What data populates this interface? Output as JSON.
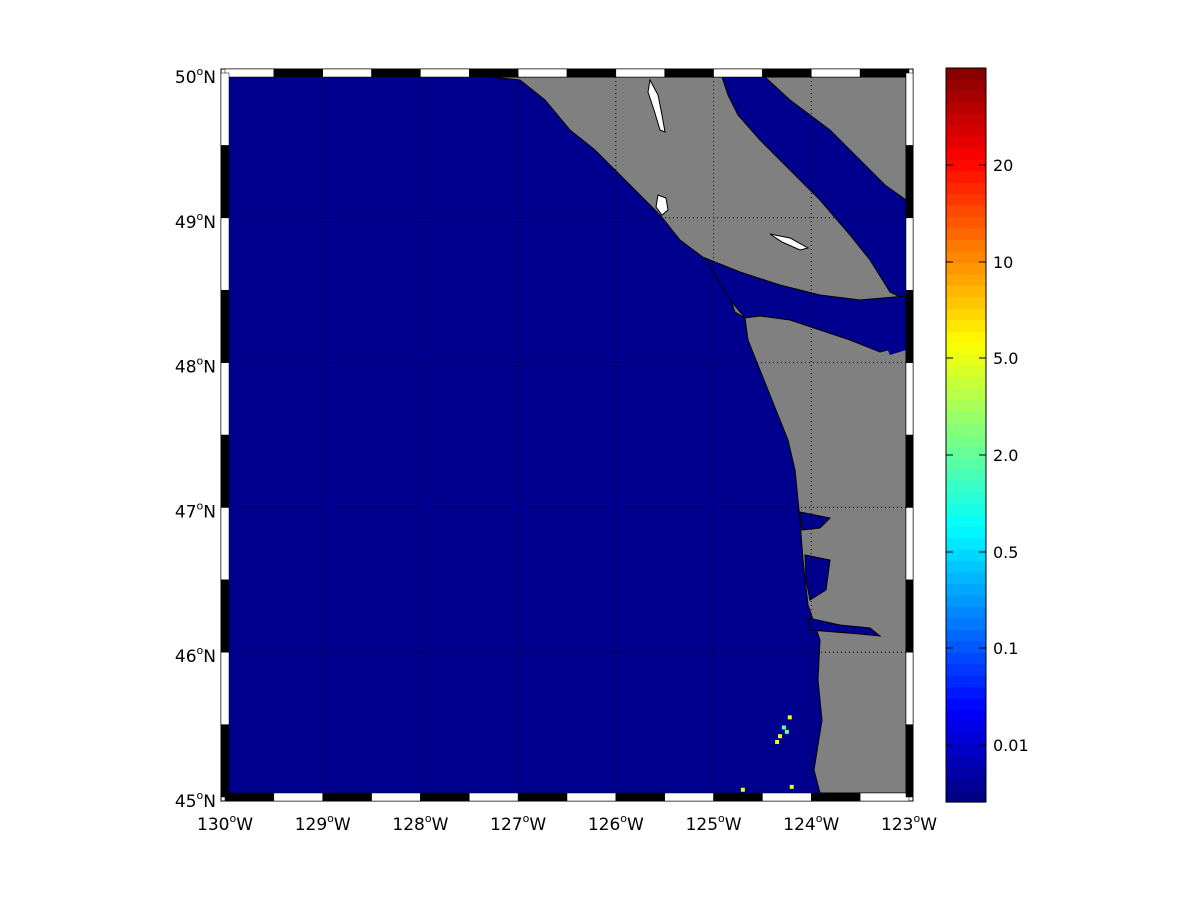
{
  "chart_data": {
    "type": "heatmap",
    "projection": "map",
    "lon_range": [
      -130,
      -123
    ],
    "lat_range": [
      45,
      50
    ],
    "grid": true,
    "x_tick_labels": [
      {
        "deg": "130",
        "hemi": "W"
      },
      {
        "deg": "129",
        "hemi": "W"
      },
      {
        "deg": "128",
        "hemi": "W"
      },
      {
        "deg": "127",
        "hemi": "W"
      },
      {
        "deg": "126",
        "hemi": "W"
      },
      {
        "deg": "125",
        "hemi": "W"
      },
      {
        "deg": "124",
        "hemi": "W"
      },
      {
        "deg": "123",
        "hemi": "W"
      }
    ],
    "y_tick_labels": [
      {
        "deg": "45",
        "hemi": "N"
      },
      {
        "deg": "46",
        "hemi": "N"
      },
      {
        "deg": "47",
        "hemi": "N"
      },
      {
        "deg": "48",
        "hemi": "N"
      },
      {
        "deg": "49",
        "hemi": "N"
      },
      {
        "deg": "50",
        "hemi": "N"
      }
    ],
    "colormap": "jet",
    "colorbar": {
      "location": "right",
      "scale": "nonlinear",
      "tick_labels": [
        "0.01",
        "0.1",
        "0.5",
        "2.0",
        "5.0",
        "10",
        "20"
      ]
    },
    "colors": {
      "ocean_background": "#00008f",
      "land": "#808080",
      "lakes": "#ffffff"
    },
    "nonzero_cells": [
      {
        "lon": -124.28,
        "lat": 45.48,
        "level": "2.0"
      },
      {
        "lon": -124.25,
        "lat": 45.45,
        "level": "2.0"
      },
      {
        "lon": -124.32,
        "lat": 45.42,
        "level": "5.0"
      },
      {
        "lon": -124.22,
        "lat": 45.55,
        "level": "5.0"
      },
      {
        "lon": -124.35,
        "lat": 45.38,
        "level": "5.0"
      },
      {
        "lon": -124.7,
        "lat": 45.05,
        "level": "5.0"
      },
      {
        "lon": -124.2,
        "lat": 45.07,
        "level": "5.0"
      }
    ]
  }
}
